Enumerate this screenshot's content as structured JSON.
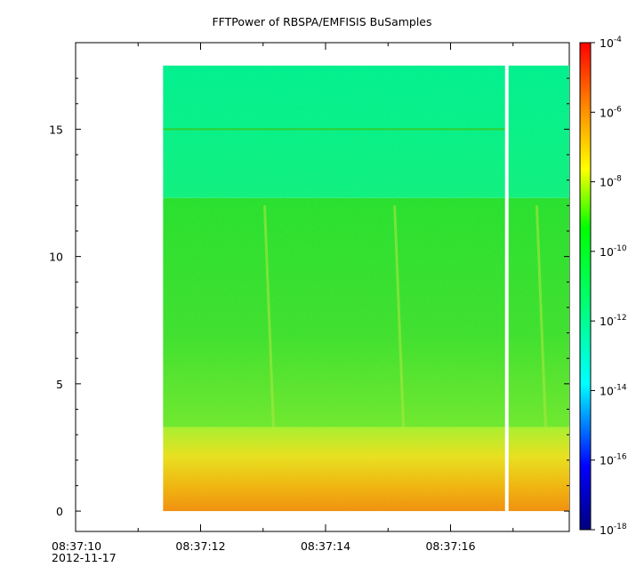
{
  "chart_data": {
    "type": "heatmap",
    "title": "FFTPower of RBSPA/EMFISIS  BuSamples",
    "xlabel": "",
    "ylabel": "",
    "x_tick_labels": [
      "08:37:10",
      "08:37:12",
      "08:37:14",
      "08:37:16"
    ],
    "x_date_label": "2012-11-17",
    "x_range": [
      "08:37:10.0",
      "08:37:17.9"
    ],
    "data_x_range": [
      "08:37:11.4",
      "08:37:17.9"
    ],
    "gap_time": "08:37:16.9",
    "y_ticks": [
      0,
      5,
      10,
      15
    ],
    "ylim": [
      -0.8,
      18.4
    ],
    "data_y_range": [
      0,
      17.5
    ],
    "z_scale": "log",
    "z_range": [
      "1e-18",
      "1e-4"
    ],
    "colorbar_ticks": [
      {
        "base": "10",
        "exp": "-4"
      },
      {
        "base": "10",
        "exp": "-6"
      },
      {
        "base": "10",
        "exp": "-8"
      },
      {
        "base": "10",
        "exp": "-10"
      },
      {
        "base": "10",
        "exp": "-12"
      },
      {
        "base": "10",
        "exp": "-14"
      },
      {
        "base": "10",
        "exp": "-16"
      },
      {
        "base": "10",
        "exp": "-18"
      }
    ],
    "colormap": [
      "#000080",
      "#0000ff",
      "#00ffff",
      "#00ff00",
      "#ffff00",
      "#ff8000",
      "#ff0000"
    ],
    "bands": [
      {
        "y_from": 12.3,
        "y_to": 17.5,
        "level": "1e-13",
        "color": "#00f090"
      },
      {
        "y_from": 3.3,
        "y_to": 12.3,
        "level": "1e-10",
        "color": "#30e030"
      },
      {
        "y_from": 0,
        "y_to": 3.3,
        "level": "1e-8",
        "color": "#e8d020"
      }
    ],
    "line_at": 15,
    "grid": false,
    "legend": "colorbar-right"
  }
}
